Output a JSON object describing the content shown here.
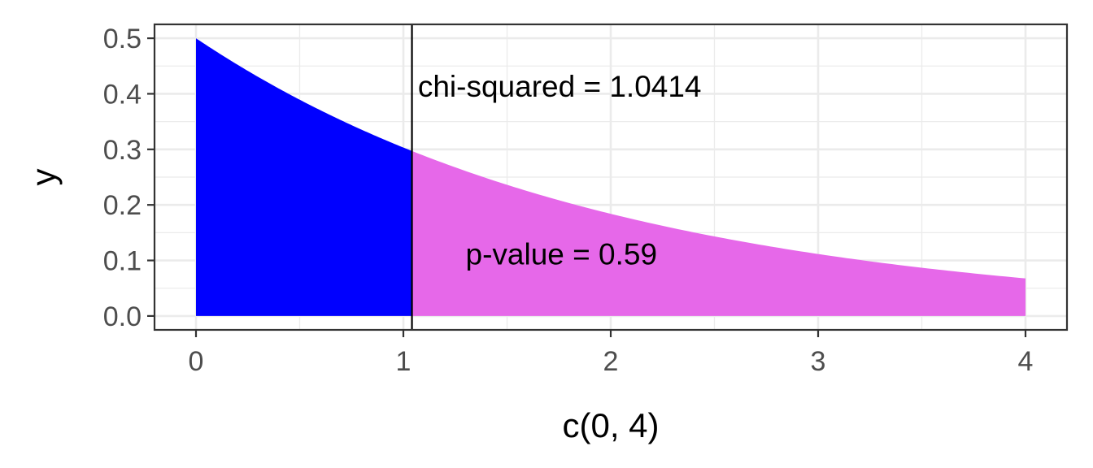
{
  "chart_data": {
    "type": "area",
    "title": "",
    "xlabel": "c(0, 4)",
    "ylabel": "y",
    "xlim": [
      -0.2,
      4.2
    ],
    "ylim": [
      -0.025,
      0.525
    ],
    "x_ticks": [
      0,
      1,
      2,
      3,
      4
    ],
    "x_tick_labels": [
      "0",
      "1",
      "2",
      "3",
      "4"
    ],
    "y_ticks": [
      0.0,
      0.1,
      0.2,
      0.3,
      0.4,
      0.5
    ],
    "y_tick_labels": [
      "0.0",
      "0.1",
      "0.2",
      "0.3",
      "0.4",
      "0.5"
    ],
    "grid": true,
    "curve": {
      "x": [
        0,
        0.25,
        0.5,
        0.75,
        1.0,
        1.0414,
        1.25,
        1.5,
        1.75,
        2.0,
        2.25,
        2.5,
        2.75,
        3.0,
        3.25,
        3.5,
        3.75,
        4.0
      ],
      "y": [
        0.5,
        0.441,
        0.389,
        0.344,
        0.303,
        0.297,
        0.268,
        0.236,
        0.208,
        0.184,
        0.162,
        0.143,
        0.126,
        0.112,
        0.098,
        0.087,
        0.077,
        0.068
      ]
    },
    "regions": [
      {
        "from": 0,
        "to": 1.0414,
        "color": "#0000ff"
      },
      {
        "from": 1.0414,
        "to": 4,
        "color": "#e668e9"
      }
    ],
    "vline": {
      "x": 1.0414,
      "color": "#000000"
    },
    "annotations": [
      {
        "text": "chi-squared = 1.0414",
        "x": 1.07,
        "y": 0.395
      },
      {
        "text": "p-value = 0.59",
        "x": 1.3,
        "y": 0.093
      }
    ]
  }
}
